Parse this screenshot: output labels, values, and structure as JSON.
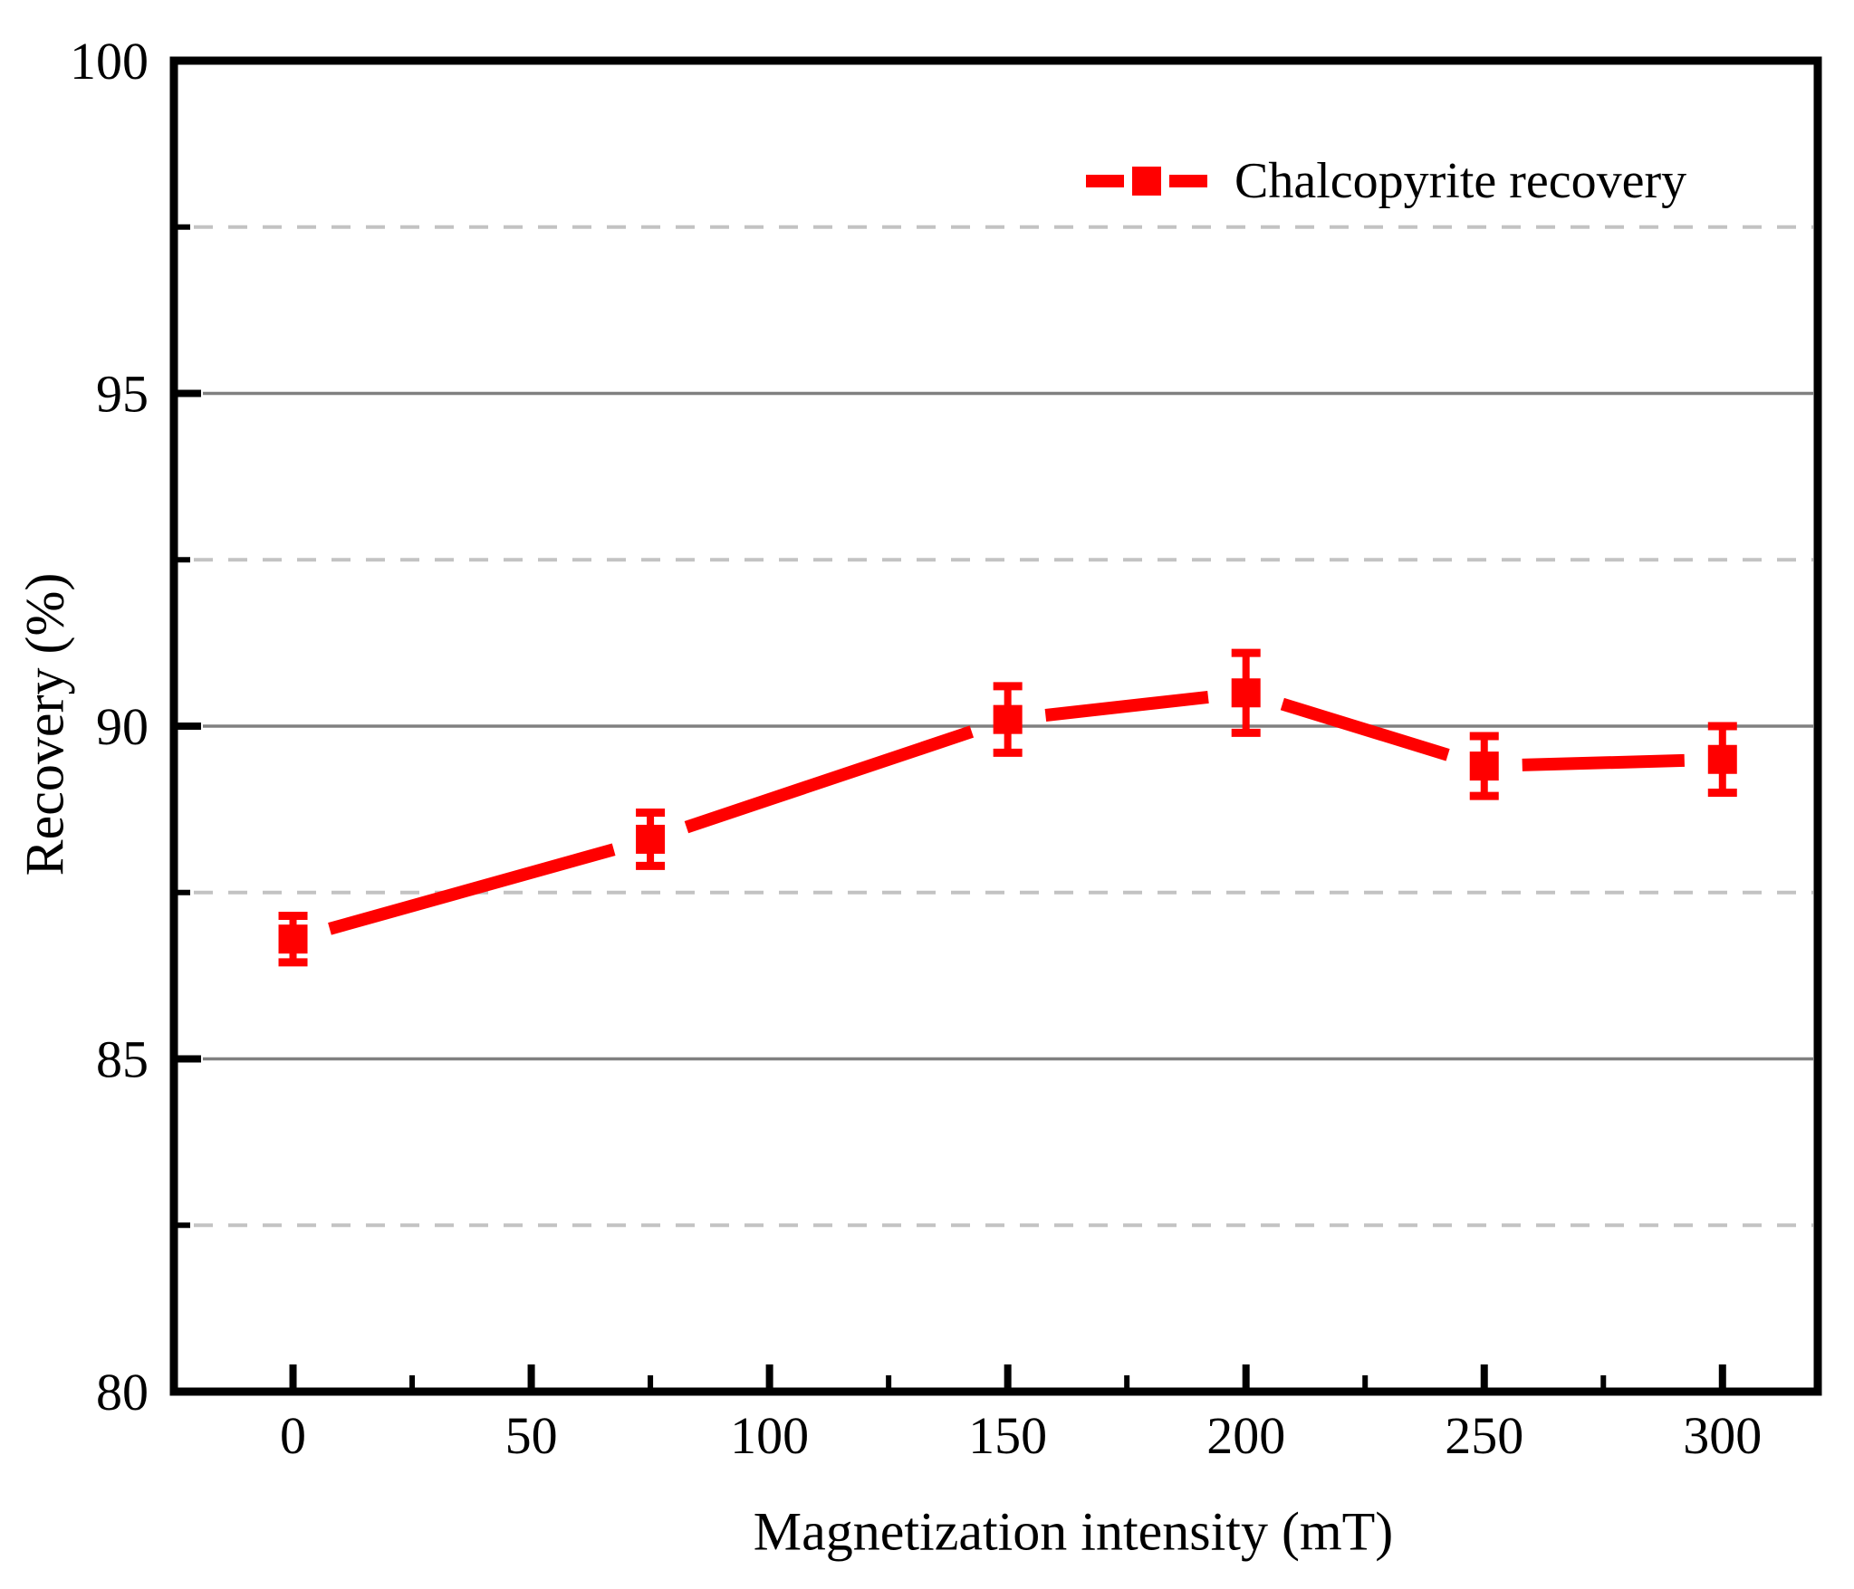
{
  "chart_data": {
    "type": "line",
    "title": "",
    "xlabel": "Magnetization intensity (mT)",
    "ylabel": "Recovery (%)",
    "xlim": [
      -25,
      320
    ],
    "ylim": [
      80,
      100
    ],
    "x_major_ticks": [
      0,
      50,
      100,
      150,
      200,
      250,
      300
    ],
    "x_minor_ticks": [
      25,
      75,
      125,
      175,
      225,
      275
    ],
    "y_major_ticks": [
      80,
      85,
      90,
      95,
      100
    ],
    "y_minor_ticks": [
      82.5,
      87.5,
      92.5,
      97.5
    ],
    "grid": {
      "horizontal_major": [
        85,
        90,
        95
      ],
      "horizontal_minor": [
        82.5,
        87.5,
        92.5,
        97.5
      ],
      "vertical": false,
      "major_style": "solid",
      "minor_style": "dashed"
    },
    "legend": {
      "label": "Chalcopyrite recovery",
      "position": "top-right"
    },
    "series": [
      {
        "name": "Chalcopyrite recovery",
        "x": [
          0,
          75,
          150,
          200,
          250,
          300
        ],
        "y": [
          86.8,
          88.3,
          90.1,
          90.5,
          89.4,
          89.5
        ],
        "y_err": [
          0.35,
          0.4,
          0.5,
          0.6,
          0.45,
          0.5
        ],
        "marker": "filled-square",
        "line": "solid-with-symbol-gap"
      }
    ],
    "colors": {
      "series": "#ff0000",
      "axis": "#000000",
      "grid_major": "#808080",
      "grid_minor": "#c3c3c3",
      "text": "#000000",
      "background": "#ffffff"
    }
  }
}
